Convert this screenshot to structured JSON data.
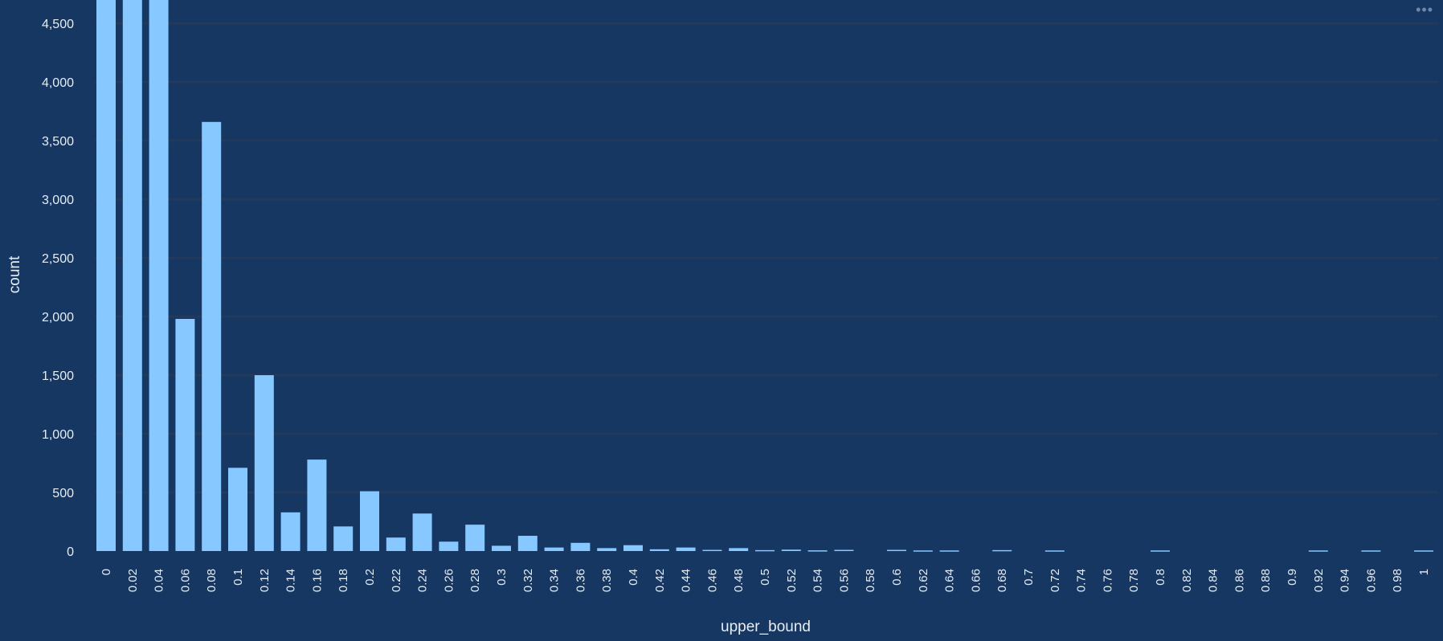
{
  "menu": {
    "icon": "more-horizontal-icon",
    "glyph": "•••"
  },
  "chart_data": {
    "type": "bar",
    "xlabel": "upper_bound",
    "ylabel": "count",
    "ylim": [
      0,
      4700
    ],
    "grid": true,
    "colors": {
      "background": "#163762",
      "bar": "#86c8ff",
      "grid": "#223a5b",
      "text": "#e6edf5"
    },
    "yticks": [
      0,
      500,
      1000,
      1500,
      2000,
      2500,
      3000,
      3500,
      4000,
      4500
    ],
    "ytick_labels": [
      "0",
      "500",
      "1,000",
      "1,500",
      "2,000",
      "2,500",
      "3,000",
      "3,500",
      "4,000",
      "4,500"
    ],
    "categories": [
      "0",
      "0.02",
      "0.04",
      "0.06",
      "0.08",
      "0.1",
      "0.12",
      "0.14",
      "0.16",
      "0.18",
      "0.2",
      "0.22",
      "0.24",
      "0.26",
      "0.28",
      "0.3",
      "0.32",
      "0.34",
      "0.36",
      "0.38",
      "0.4",
      "0.42",
      "0.44",
      "0.46",
      "0.48",
      "0.5",
      "0.52",
      "0.54",
      "0.56",
      "0.58",
      "0.6",
      "0.62",
      "0.64",
      "0.66",
      "0.68",
      "0.7",
      "0.72",
      "0.74",
      "0.76",
      "0.78",
      "0.8",
      "0.82",
      "0.84",
      "0.86",
      "0.88",
      "0.9",
      "0.92",
      "0.94",
      "0.96",
      "0.98",
      "1"
    ],
    "values": [
      4700,
      4700,
      4700,
      1980,
      3660,
      710,
      1500,
      330,
      780,
      210,
      510,
      115,
      320,
      80,
      225,
      45,
      130,
      30,
      70,
      25,
      50,
      15,
      30,
      10,
      25,
      8,
      12,
      6,
      10,
      0,
      10,
      5,
      5,
      0,
      8,
      0,
      5,
      0,
      0,
      0,
      5,
      0,
      0,
      0,
      0,
      0,
      5,
      0,
      5,
      0,
      5
    ]
  }
}
